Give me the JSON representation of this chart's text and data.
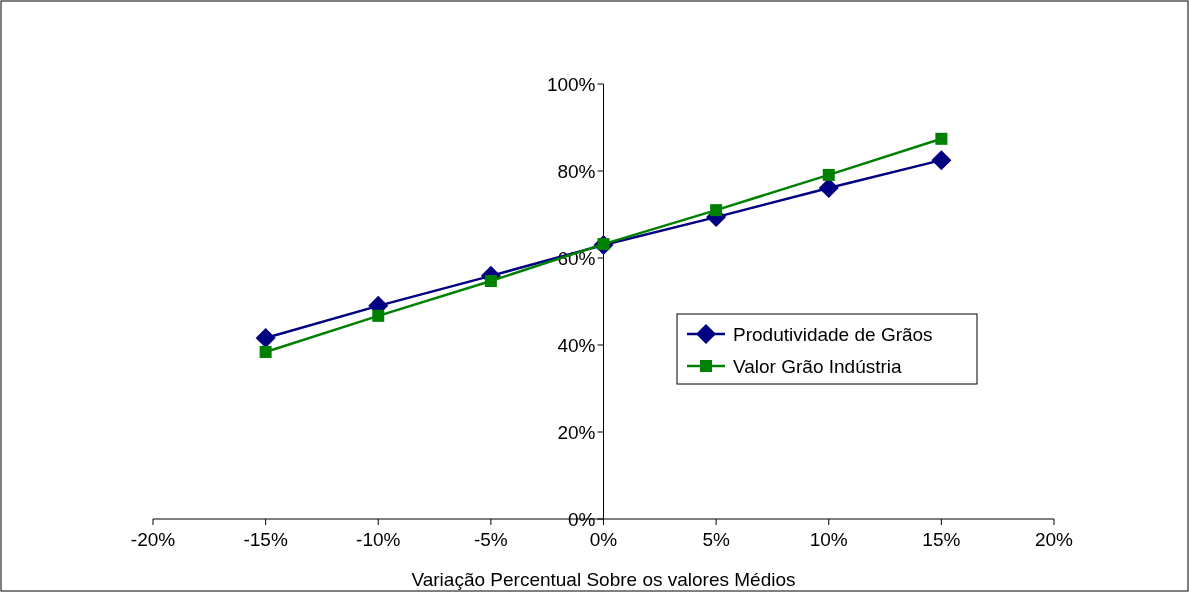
{
  "chart_data": {
    "type": "line",
    "xlabel": "Variação Percentual Sobre os valores Médios",
    "x": [
      -15,
      -10,
      -5,
      0,
      5,
      10,
      15
    ],
    "series": [
      {
        "name": "Produtividade de Grãos",
        "color": "#000080",
        "marker": "diamond",
        "values": [
          41.6,
          49,
          55.9,
          63,
          69.4,
          76.1,
          82.5
        ]
      },
      {
        "name": "Valor Grão Indústria",
        "color": "#008000",
        "marker": "square",
        "values": [
          38.4,
          46.7,
          54.7,
          63.2,
          71,
          79.1,
          87.4
        ]
      }
    ],
    "xlim": [
      -20,
      20
    ],
    "xticks": [
      {
        "value": -20,
        "label": "-20%"
      },
      {
        "value": -15,
        "label": "-15%"
      },
      {
        "value": -10,
        "label": "-10%"
      },
      {
        "value": -5,
        "label": "-5%"
      },
      {
        "value": 0,
        "label": "0%"
      },
      {
        "value": 5,
        "label": "5%"
      },
      {
        "value": 10,
        "label": "10%"
      },
      {
        "value": 15,
        "label": "15%"
      },
      {
        "value": 20,
        "label": "20%"
      }
    ],
    "ylim": [
      0,
      100
    ],
    "yticks": [
      {
        "value": 0,
        "label": "0%"
      },
      {
        "value": 20,
        "label": "20%"
      },
      {
        "value": 40,
        "label": "40%"
      },
      {
        "value": 60,
        "label": "60%"
      },
      {
        "value": 80,
        "label": "80%"
      },
      {
        "value": 100,
        "label": "100%"
      }
    ],
    "grid": false,
    "legend": "right"
  }
}
